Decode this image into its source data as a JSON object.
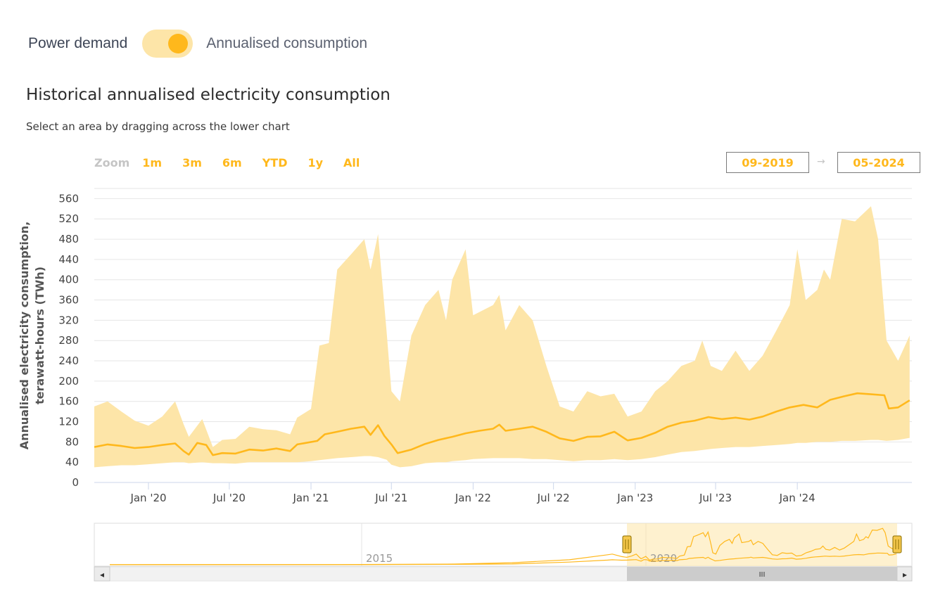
{
  "toggle": {
    "left_label": "Power demand",
    "right_label": "Annualised consumption"
  },
  "title": "Historical annualised electricity consumption",
  "subtitle": "Select an area by dragging across the lower chart",
  "range_selector": {
    "zoom_label": "Zoom",
    "buttons": [
      "1m",
      "3m",
      "6m",
      "YTD",
      "1y",
      "All"
    ]
  },
  "date_range": {
    "from": "09-2019",
    "to": "05-2024",
    "arrow": "→"
  },
  "navigator": {
    "labels": [
      "2015",
      "2020"
    ],
    "scroll_handle": "III",
    "scroll_left": "◂",
    "scroll_right": "▸"
  },
  "colors": {
    "accent": "#ffb81c",
    "band": "#fde5a8",
    "navigator_fill": "#fff1c9"
  },
  "chart_data": {
    "type": "area",
    "ylabel": "Annualised electricity consumption, terawatt-hours (TWh)",
    "ylim": [
      0,
      580
    ],
    "yticks": [
      0,
      40,
      80,
      120,
      160,
      200,
      240,
      280,
      320,
      360,
      400,
      440,
      480,
      520,
      560
    ],
    "xlim": [
      "2019-09-01",
      "2024-09-15"
    ],
    "xticks": [
      {
        "date": "2020-01-01",
        "label": "Jan '20"
      },
      {
        "date": "2020-07-01",
        "label": "Jul '20"
      },
      {
        "date": "2021-01-01",
        "label": "Jan '21"
      },
      {
        "date": "2021-07-01",
        "label": "Jul '21"
      },
      {
        "date": "2022-01-01",
        "label": "Jan '22"
      },
      {
        "date": "2022-07-01",
        "label": "Jul '22"
      },
      {
        "date": "2023-01-01",
        "label": "Jan '23"
      },
      {
        "date": "2023-07-01",
        "label": "Jul '23"
      },
      {
        "date": "2024-01-01",
        "label": "Jan '24"
      }
    ],
    "grid": true,
    "legend": "none",
    "series": [
      {
        "role": "estimate",
        "points": [
          [
            "2019-09-01",
            70
          ],
          [
            "2019-10-01",
            75
          ],
          [
            "2019-11-01",
            72
          ],
          [
            "2019-12-01",
            68
          ],
          [
            "2020-01-01",
            70
          ],
          [
            "2020-02-01",
            74
          ],
          [
            "2020-03-01",
            77
          ],
          [
            "2020-03-20",
            62
          ],
          [
            "2020-04-01",
            55
          ],
          [
            "2020-04-20",
            78
          ],
          [
            "2020-05-10",
            74
          ],
          [
            "2020-05-25",
            54
          ],
          [
            "2020-06-15",
            58
          ],
          [
            "2020-07-15",
            57
          ],
          [
            "2020-08-15",
            65
          ],
          [
            "2020-09-15",
            63
          ],
          [
            "2020-10-15",
            67
          ],
          [
            "2020-11-15",
            62
          ],
          [
            "2020-12-01",
            75
          ],
          [
            "2020-12-20",
            78
          ],
          [
            "2021-01-15",
            82
          ],
          [
            "2021-02-01",
            95
          ],
          [
            "2021-03-01",
            100
          ],
          [
            "2021-04-01",
            106
          ],
          [
            "2021-05-01",
            110
          ],
          [
            "2021-05-15",
            94
          ],
          [
            "2021-06-01",
            113
          ],
          [
            "2021-06-15",
            92
          ],
          [
            "2021-07-01",
            75
          ],
          [
            "2021-07-15",
            58
          ],
          [
            "2021-08-15",
            65
          ],
          [
            "2021-09-15",
            76
          ],
          [
            "2021-10-15",
            84
          ],
          [
            "2021-11-15",
            90
          ],
          [
            "2021-12-15",
            97
          ],
          [
            "2022-01-15",
            102
          ],
          [
            "2022-02-15",
            106
          ],
          [
            "2022-03-01",
            114
          ],
          [
            "2022-03-15",
            102
          ],
          [
            "2022-04-15",
            106
          ],
          [
            "2022-05-15",
            110
          ],
          [
            "2022-06-15",
            100
          ],
          [
            "2022-07-15",
            87
          ],
          [
            "2022-08-15",
            82
          ],
          [
            "2022-09-15",
            90
          ],
          [
            "2022-10-15",
            91
          ],
          [
            "2022-11-15",
            100
          ],
          [
            "2022-12-15",
            83
          ],
          [
            "2023-01-15",
            88
          ],
          [
            "2023-02-15",
            98
          ],
          [
            "2023-03-15",
            110
          ],
          [
            "2023-04-15",
            118
          ],
          [
            "2023-05-15",
            122
          ],
          [
            "2023-06-15",
            129
          ],
          [
            "2023-07-15",
            125
          ],
          [
            "2023-08-15",
            128
          ],
          [
            "2023-09-15",
            124
          ],
          [
            "2023-10-15",
            130
          ],
          [
            "2023-11-15",
            140
          ],
          [
            "2023-12-15",
            148
          ],
          [
            "2024-01-15",
            153
          ],
          [
            "2024-02-15",
            148
          ],
          [
            "2024-03-15",
            163
          ],
          [
            "2024-04-15",
            170
          ],
          [
            "2024-05-15",
            176
          ],
          [
            "2024-06-15",
            174
          ],
          [
            "2024-07-15",
            172
          ],
          [
            "2024-07-25",
            146
          ],
          [
            "2024-08-15",
            148
          ],
          [
            "2024-09-10",
            162
          ]
        ]
      },
      {
        "role": "range",
        "points": [
          [
            "2019-09-01",
            30,
            150
          ],
          [
            "2019-10-01",
            32,
            160
          ],
          [
            "2019-11-01",
            34,
            140
          ],
          [
            "2019-12-01",
            34,
            122
          ],
          [
            "2020-01-01",
            36,
            112
          ],
          [
            "2020-02-01",
            38,
            130
          ],
          [
            "2020-03-01",
            40,
            160
          ],
          [
            "2020-03-20",
            40,
            115
          ],
          [
            "2020-04-01",
            38,
            90
          ],
          [
            "2020-05-01",
            40,
            125
          ],
          [
            "2020-05-25",
            38,
            70
          ],
          [
            "2020-06-15",
            38,
            84
          ],
          [
            "2020-07-15",
            37,
            86
          ],
          [
            "2020-08-15",
            40,
            110
          ],
          [
            "2020-09-15",
            40,
            105
          ],
          [
            "2020-10-15",
            40,
            103
          ],
          [
            "2020-11-15",
            40,
            95
          ],
          [
            "2020-12-01",
            40,
            128
          ],
          [
            "2021-01-01",
            42,
            145
          ],
          [
            "2021-01-20",
            44,
            270
          ],
          [
            "2021-02-10",
            46,
            275
          ],
          [
            "2021-03-01",
            48,
            420
          ],
          [
            "2021-04-01",
            50,
            450
          ],
          [
            "2021-05-01",
            52,
            480
          ],
          [
            "2021-05-15",
            52,
            420
          ],
          [
            "2021-06-01",
            50,
            490
          ],
          [
            "2021-06-20",
            45,
            300
          ],
          [
            "2021-07-01",
            35,
            180
          ],
          [
            "2021-07-20",
            30,
            160
          ],
          [
            "2021-08-15",
            32,
            290
          ],
          [
            "2021-09-15",
            38,
            350
          ],
          [
            "2021-10-15",
            40,
            380
          ],
          [
            "2021-11-01",
            40,
            320
          ],
          [
            "2021-11-15",
            42,
            400
          ],
          [
            "2021-12-15",
            44,
            460
          ],
          [
            "2022-01-01",
            46,
            330
          ],
          [
            "2022-02-15",
            48,
            350
          ],
          [
            "2022-03-01",
            48,
            370
          ],
          [
            "2022-03-15",
            48,
            300
          ],
          [
            "2022-04-15",
            48,
            350
          ],
          [
            "2022-05-15",
            46,
            320
          ],
          [
            "2022-06-15",
            46,
            230
          ],
          [
            "2022-07-15",
            44,
            150
          ],
          [
            "2022-08-15",
            42,
            140
          ],
          [
            "2022-09-15",
            44,
            180
          ],
          [
            "2022-10-15",
            44,
            170
          ],
          [
            "2022-11-15",
            46,
            175
          ],
          [
            "2022-12-15",
            44,
            130
          ],
          [
            "2023-01-15",
            46,
            140
          ],
          [
            "2023-02-15",
            50,
            180
          ],
          [
            "2023-03-15",
            55,
            200
          ],
          [
            "2023-04-15",
            60,
            230
          ],
          [
            "2023-05-15",
            62,
            240
          ],
          [
            "2023-06-01",
            64,
            280
          ],
          [
            "2023-06-20",
            66,
            230
          ],
          [
            "2023-07-15",
            68,
            220
          ],
          [
            "2023-08-15",
            70,
            260
          ],
          [
            "2023-09-15",
            70,
            220
          ],
          [
            "2023-10-15",
            72,
            250
          ],
          [
            "2023-11-15",
            74,
            300
          ],
          [
            "2023-12-15",
            76,
            350
          ],
          [
            "2024-01-01",
            78,
            460
          ],
          [
            "2024-01-20",
            78,
            360
          ],
          [
            "2024-02-15",
            80,
            380
          ],
          [
            "2024-03-01",
            80,
            420
          ],
          [
            "2024-03-15",
            80,
            400
          ],
          [
            "2024-04-10",
            82,
            520
          ],
          [
            "2024-05-10",
            82,
            515
          ],
          [
            "2024-06-15",
            84,
            545
          ],
          [
            "2024-07-01",
            84,
            480
          ],
          [
            "2024-07-20",
            82,
            280
          ],
          [
            "2024-08-15",
            84,
            240
          ],
          [
            "2024-09-10",
            88,
            290
          ]
        ]
      }
    ]
  }
}
